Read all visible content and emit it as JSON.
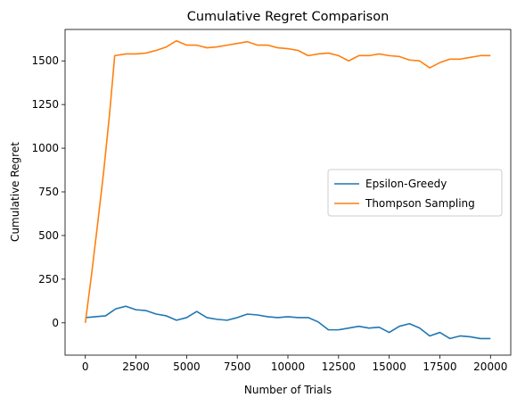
{
  "chart_data": {
    "type": "line",
    "title": "Cumulative Regret Comparison",
    "xlabel": "Number of Trials",
    "ylabel": "Cumulative Regret",
    "xlim": [
      -1000,
      21000
    ],
    "ylim": [
      -185,
      1680
    ],
    "xticks": [
      0,
      2500,
      5000,
      7500,
      10000,
      12500,
      15000,
      17500,
      20000
    ],
    "yticks": [
      0,
      250,
      500,
      750,
      1000,
      1250,
      1500
    ],
    "grid": false,
    "legend": {
      "placement": "center-right"
    },
    "series": [
      {
        "name": "Epsilon-Greedy",
        "color": "#1f77b4",
        "points": [
          [
            0,
            30
          ],
          [
            500,
            35
          ],
          [
            1000,
            40
          ],
          [
            1500,
            80
          ],
          [
            2000,
            95
          ],
          [
            2500,
            75
          ],
          [
            3000,
            70
          ],
          [
            3500,
            50
          ],
          [
            4000,
            40
          ],
          [
            4500,
            15
          ],
          [
            5000,
            30
          ],
          [
            5500,
            65
          ],
          [
            6000,
            30
          ],
          [
            6500,
            20
          ],
          [
            7000,
            15
          ],
          [
            7500,
            30
          ],
          [
            8000,
            50
          ],
          [
            8500,
            45
          ],
          [
            9000,
            35
          ],
          [
            9500,
            30
          ],
          [
            10000,
            35
          ],
          [
            10500,
            30
          ],
          [
            11000,
            30
          ],
          [
            11500,
            5
          ],
          [
            12000,
            -40
          ],
          [
            12500,
            -40
          ],
          [
            13000,
            -30
          ],
          [
            13500,
            -20
          ],
          [
            14000,
            -30
          ],
          [
            14500,
            -25
          ],
          [
            15000,
            -55
          ],
          [
            15500,
            -20
          ],
          [
            16000,
            -5
          ],
          [
            16500,
            -30
          ],
          [
            17000,
            -75
          ],
          [
            17500,
            -55
          ],
          [
            18000,
            -90
          ],
          [
            18500,
            -75
          ],
          [
            19000,
            -80
          ],
          [
            19500,
            -90
          ],
          [
            20000,
            -90
          ]
        ]
      },
      {
        "name": "Thompson Sampling",
        "color": "#ff7f0e",
        "points": [
          [
            0,
            0
          ],
          [
            300,
            270
          ],
          [
            600,
            560
          ],
          [
            900,
            860
          ],
          [
            1200,
            1200
          ],
          [
            1450,
            1530
          ],
          [
            2000,
            1540
          ],
          [
            2500,
            1540
          ],
          [
            3000,
            1545
          ],
          [
            3500,
            1560
          ],
          [
            4000,
            1580
          ],
          [
            4500,
            1615
          ],
          [
            5000,
            1590
          ],
          [
            5500,
            1590
          ],
          [
            6000,
            1575
          ],
          [
            6500,
            1580
          ],
          [
            7000,
            1590
          ],
          [
            7500,
            1600
          ],
          [
            8000,
            1610
          ],
          [
            8500,
            1590
          ],
          [
            9000,
            1590
          ],
          [
            9500,
            1575
          ],
          [
            10000,
            1570
          ],
          [
            10500,
            1560
          ],
          [
            11000,
            1530
          ],
          [
            11500,
            1540
          ],
          [
            12000,
            1545
          ],
          [
            12500,
            1530
          ],
          [
            13000,
            1500
          ],
          [
            13500,
            1530
          ],
          [
            14000,
            1530
          ],
          [
            14500,
            1540
          ],
          [
            15000,
            1530
          ],
          [
            15500,
            1525
          ],
          [
            16000,
            1505
          ],
          [
            16500,
            1500
          ],
          [
            17000,
            1460
          ],
          [
            17500,
            1490
          ],
          [
            18000,
            1510
          ],
          [
            18500,
            1510
          ],
          [
            19000,
            1520
          ],
          [
            19500,
            1530
          ],
          [
            20000,
            1530
          ]
        ]
      }
    ]
  }
}
